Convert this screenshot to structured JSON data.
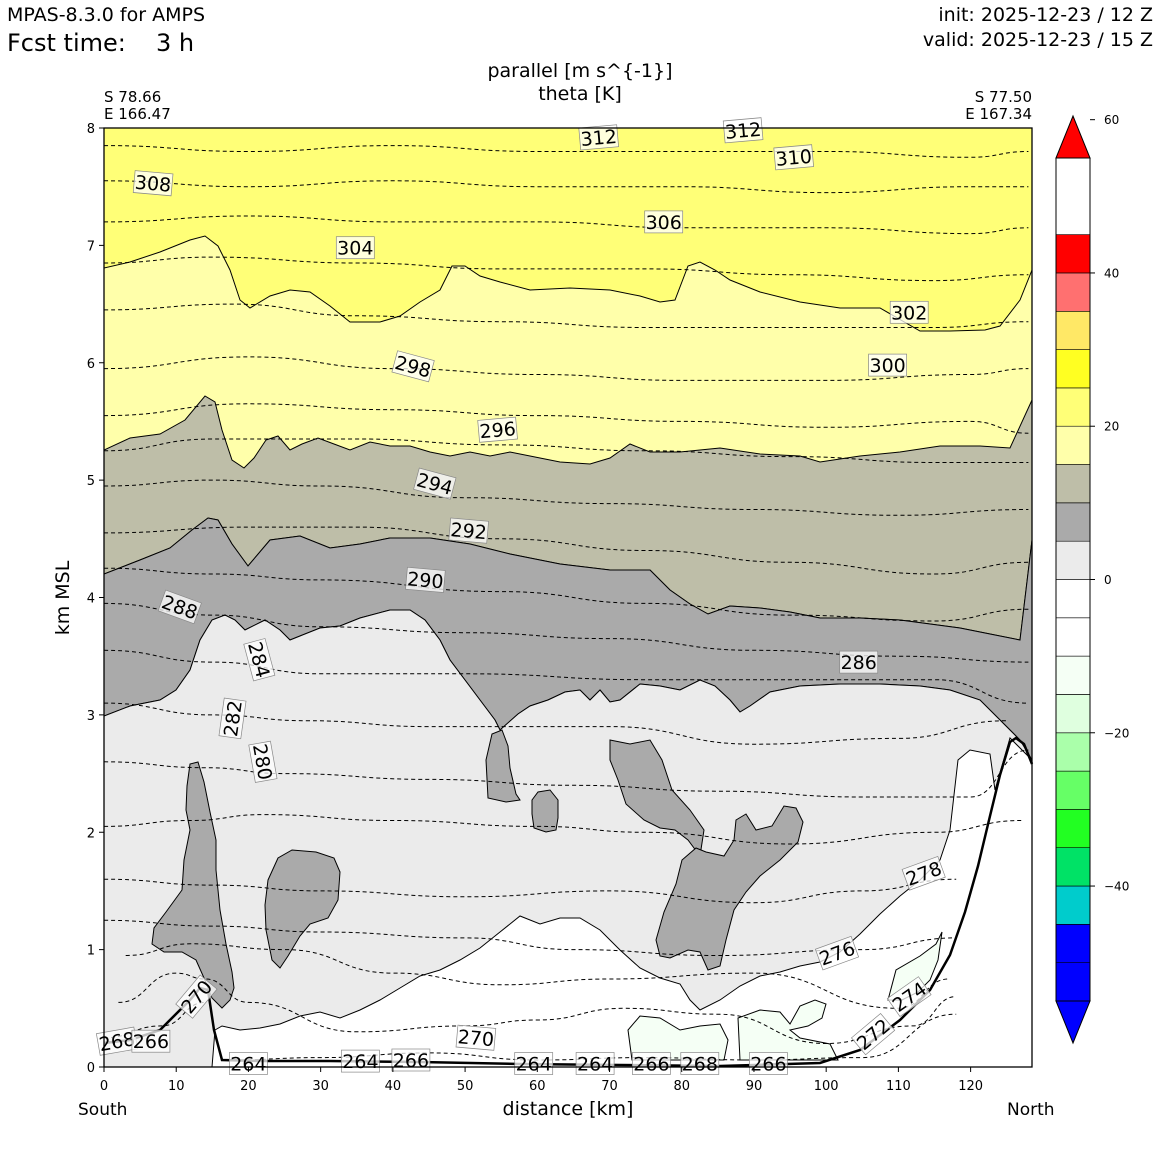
{
  "header": {
    "model": "MPAS-8.3.0 for AMPS",
    "fcst_label": "Fcst time:",
    "fcst_value": "3 h",
    "init": "init: 2025-12-23 / 12 Z",
    "valid": "valid: 2025-12-23 / 15 Z"
  },
  "chart_data": {
    "type": "cross-section",
    "title_line1": "parallel [m s^{-1}]",
    "title_line2": "theta [K]",
    "left_endpoint": {
      "lat": "S 78.66",
      "lon": "E 166.47"
    },
    "right_endpoint": {
      "lat": "S 77.50",
      "lon": "E 167.34"
    },
    "xlabel": "distance [km]",
    "ylabel": "km MSL",
    "x_left_label": "South",
    "x_right_label": "North",
    "xlim": [
      0,
      128.5
    ],
    "ylim": [
      0,
      8
    ],
    "xticks": [
      0,
      10,
      20,
      30,
      40,
      50,
      60,
      70,
      80,
      90,
      100,
      110,
      120
    ],
    "yticks": [
      0,
      1,
      2,
      3,
      4,
      5,
      6,
      7,
      8
    ],
    "colorbar": {
      "levels": [
        -55,
        -50,
        -45,
        -40,
        -35,
        -30,
        -25,
        -20,
        -15,
        -10,
        -5,
        0,
        5,
        10,
        15,
        20,
        25,
        30,
        35,
        40,
        45,
        50,
        55
      ],
      "colors": [
        "#0000ff",
        "#0000ff",
        "#00cccc",
        "#00e266",
        "#22ff22",
        "#66ff66",
        "#aaffaa",
        "#dfffdf",
        "#f5fff5",
        "#ffffff",
        "#ffffff",
        "#ebebeb",
        "#aaaaaa",
        "#bebea8",
        "#ffffaa",
        "#ffff77",
        "#ffff22",
        "#ffe866",
        "#ff7070",
        "#ff0000"
      ],
      "under_color": "#0000ff",
      "over_color": "#ff0000",
      "tick_values": [
        -40,
        -20,
        0,
        20,
        40,
        60
      ],
      "tick_labels": [
        "−40",
        "−20",
        "0",
        "20",
        "40",
        "60"
      ]
    },
    "wind_regions": [
      {
        "level": "20-25",
        "color": "#bebea8"
      },
      {
        "level": "15-20",
        "color": "#aaaaaa"
      },
      {
        "level": "10-15",
        "color": "#ebebeb"
      },
      {
        "level": "5-10",
        "color": "#ffffff"
      },
      {
        "level": "0-5",
        "color": "#f5fff5"
      },
      {
        "level": "25-30",
        "color": "#ffffaa"
      },
      {
        "level": "30-35",
        "color": "#ffff77"
      }
    ],
    "theta_contours": [
      {
        "value": 268,
        "label": "268",
        "pts": [
          [
            0,
            0.25
          ],
          [
            8,
            0.35
          ],
          [
            14,
            0.55
          ]
        ]
      },
      {
        "value": 270,
        "label": "270",
        "pts": [
          [
            17,
            0.06
          ],
          [
            30,
            0.08
          ],
          [
            45,
            0.12
          ],
          [
            60,
            0.06
          ],
          [
            75,
            0.08
          ],
          [
            90,
            0.06
          ],
          [
            105,
            0.08
          ],
          [
            118,
            0.45
          ]
        ]
      },
      {
        "value": 272,
        "label": "272",
        "pts": [
          [
            2,
            0.55
          ],
          [
            10,
            0.8
          ],
          [
            14,
            0.75
          ],
          [
            20,
            0.55
          ],
          [
            35,
            0.3
          ],
          [
            50,
            0.35
          ],
          [
            60,
            0.4
          ],
          [
            72,
            0.5
          ],
          [
            85,
            0.45
          ],
          [
            100,
            0.2
          ],
          [
            112,
            0.35
          ],
          [
            118,
            0.6
          ]
        ]
      },
      {
        "value": 274,
        "label": "274",
        "pts": [
          [
            3,
            0.95
          ],
          [
            12,
            1.05
          ],
          [
            25,
            1.0
          ],
          [
            40,
            0.8
          ],
          [
            55,
            0.7
          ],
          [
            70,
            0.75
          ],
          [
            90,
            0.8
          ],
          [
            110,
            0.5
          ],
          [
            117,
            0.75
          ]
        ]
      },
      {
        "value": 276,
        "label": "276",
        "pts": [
          [
            0,
            1.25
          ],
          [
            15,
            1.2
          ],
          [
            30,
            1.15
          ],
          [
            50,
            1.1
          ],
          [
            65,
            1.0
          ],
          [
            85,
            0.95
          ],
          [
            105,
            1.0
          ],
          [
            118,
            1.1
          ]
        ]
      },
      {
        "value": 278,
        "label": "278",
        "pts": [
          [
            0,
            1.6
          ],
          [
            15,
            1.55
          ],
          [
            30,
            1.5
          ],
          [
            50,
            1.45
          ],
          [
            70,
            1.5
          ],
          [
            90,
            1.4
          ],
          [
            105,
            1.5
          ],
          [
            118,
            1.6
          ]
        ]
      },
      {
        "value": 280,
        "label": "280",
        "pts": [
          [
            0,
            2.05
          ],
          [
            12,
            2.1
          ],
          [
            22,
            2.15
          ],
          [
            40,
            2.1
          ],
          [
            60,
            2.05
          ],
          [
            75,
            2.0
          ],
          [
            95,
            1.9
          ],
          [
            115,
            2.0
          ],
          [
            127,
            2.1
          ]
        ]
      },
      {
        "value": 282,
        "label": "282",
        "pts": [
          [
            0,
            2.6
          ],
          [
            14,
            2.55
          ],
          [
            25,
            2.5
          ],
          [
            45,
            2.45
          ],
          [
            65,
            2.4
          ],
          [
            85,
            2.35
          ],
          [
            105,
            2.3
          ],
          [
            120,
            2.3
          ],
          [
            128,
            2.7
          ]
        ]
      },
      {
        "value": 284,
        "label": "284",
        "pts": [
          [
            0,
            3.1
          ],
          [
            15,
            3.0
          ],
          [
            28,
            2.95
          ],
          [
            45,
            2.9
          ],
          [
            70,
            2.9
          ],
          [
            90,
            2.75
          ],
          [
            110,
            2.8
          ],
          [
            125,
            2.95
          ]
        ]
      },
      {
        "value": 286,
        "label": "286",
        "pts": [
          [
            0,
            3.55
          ],
          [
            15,
            3.45
          ],
          [
            30,
            3.35
          ],
          [
            50,
            3.35
          ],
          [
            75,
            3.3
          ],
          [
            100,
            3.3
          ],
          [
            115,
            3.3
          ],
          [
            128,
            3.1
          ]
        ]
      },
      {
        "value": 288,
        "label": "288",
        "pts": [
          [
            0,
            3.95
          ],
          [
            15,
            3.85
          ],
          [
            30,
            3.75
          ],
          [
            50,
            3.7
          ],
          [
            70,
            3.65
          ],
          [
            90,
            3.55
          ],
          [
            110,
            3.5
          ],
          [
            128,
            3.45
          ]
        ]
      },
      {
        "value": 290,
        "label": "290",
        "pts": [
          [
            0,
            4.25
          ],
          [
            15,
            4.2
          ],
          [
            30,
            4.15
          ],
          [
            55,
            4.05
          ],
          [
            75,
            3.95
          ],
          [
            95,
            3.85
          ],
          [
            115,
            3.8
          ],
          [
            128,
            3.9
          ]
        ]
      },
      {
        "value": 292,
        "label": "292",
        "pts": [
          [
            0,
            4.55
          ],
          [
            20,
            4.6
          ],
          [
            35,
            4.6
          ],
          [
            55,
            4.5
          ],
          [
            75,
            4.4
          ],
          [
            95,
            4.3
          ],
          [
            115,
            4.2
          ],
          [
            128,
            4.3
          ]
        ]
      },
      {
        "value": 294,
        "label": "294",
        "pts": [
          [
            0,
            4.95
          ],
          [
            15,
            5.0
          ],
          [
            30,
            4.95
          ],
          [
            50,
            4.85
          ],
          [
            70,
            4.8
          ],
          [
            90,
            4.75
          ],
          [
            110,
            4.7
          ],
          [
            128,
            4.75
          ]
        ]
      },
      {
        "value": 296,
        "label": "296",
        "pts": [
          [
            0,
            5.25
          ],
          [
            15,
            5.35
          ],
          [
            35,
            5.35
          ],
          [
            55,
            5.3
          ],
          [
            75,
            5.25
          ],
          [
            95,
            5.2
          ],
          [
            115,
            5.15
          ],
          [
            128,
            5.15
          ]
        ]
      },
      {
        "value": 298,
        "label": "298",
        "pts": [
          [
            0,
            5.55
          ],
          [
            20,
            5.65
          ],
          [
            40,
            5.6
          ],
          [
            60,
            5.55
          ],
          [
            80,
            5.5
          ],
          [
            100,
            5.45
          ],
          [
            120,
            5.5
          ],
          [
            128,
            5.4
          ]
        ]
      },
      {
        "value": 300,
        "label": "300",
        "pts": [
          [
            0,
            5.95
          ],
          [
            20,
            6.05
          ],
          [
            40,
            5.95
          ],
          [
            60,
            5.9
          ],
          [
            80,
            5.85
          ],
          [
            100,
            5.85
          ],
          [
            120,
            5.9
          ],
          [
            128,
            5.95
          ]
        ]
      },
      {
        "value": 302,
        "label": "302",
        "pts": [
          [
            0,
            6.45
          ],
          [
            18,
            6.5
          ],
          [
            35,
            6.4
          ],
          [
            55,
            6.35
          ],
          [
            75,
            6.3
          ],
          [
            95,
            6.3
          ],
          [
            115,
            6.3
          ],
          [
            128,
            6.35
          ]
        ]
      },
      {
        "value": 304,
        "label": "304",
        "pts": [
          [
            0,
            6.85
          ],
          [
            15,
            6.9
          ],
          [
            35,
            6.85
          ],
          [
            55,
            6.8
          ],
          [
            75,
            6.8
          ],
          [
            95,
            6.75
          ],
          [
            115,
            6.7
          ],
          [
            128,
            6.75
          ]
        ]
      },
      {
        "value": 306,
        "label": "306",
        "pts": [
          [
            0,
            7.2
          ],
          [
            20,
            7.25
          ],
          [
            40,
            7.2
          ],
          [
            60,
            7.2
          ],
          [
            80,
            7.15
          ],
          [
            100,
            7.15
          ],
          [
            120,
            7.1
          ],
          [
            128,
            7.15
          ]
        ]
      },
      {
        "value": 308,
        "label": "308",
        "pts": [
          [
            0,
            7.55
          ],
          [
            20,
            7.5
          ],
          [
            40,
            7.55
          ],
          [
            60,
            7.5
          ],
          [
            80,
            7.5
          ],
          [
            100,
            7.45
          ],
          [
            120,
            7.5
          ],
          [
            128,
            7.5
          ]
        ]
      },
      {
        "value": 310,
        "label": "310",
        "pts": [
          [
            0,
            7.85
          ],
          [
            20,
            7.8
          ],
          [
            40,
            7.85
          ],
          [
            60,
            7.8
          ],
          [
            80,
            7.8
          ],
          [
            100,
            7.8
          ],
          [
            120,
            7.75
          ],
          [
            128,
            7.8
          ]
        ]
      }
    ],
    "contour_labels": [
      {
        "text": "312",
        "x": 68.5,
        "y": 7.92,
        "rot": -5
      },
      {
        "text": "312",
        "x": 88.5,
        "y": 7.98,
        "rot": -5
      },
      {
        "text": "310",
        "x": 95.5,
        "y": 7.75,
        "rot": -5
      },
      {
        "text": "308",
        "x": 6.8,
        "y": 7.53,
        "rot": 5
      },
      {
        "text": "306",
        "x": 77.5,
        "y": 7.2,
        "rot": 0
      },
      {
        "text": "304",
        "x": 34.8,
        "y": 6.98,
        "rot": 0
      },
      {
        "text": "302",
        "x": 111.5,
        "y": 6.43,
        "rot": 0
      },
      {
        "text": "300",
        "x": 108.5,
        "y": 5.98,
        "rot": 0
      },
      {
        "text": "298",
        "x": 42.8,
        "y": 5.97,
        "rot": 15
      },
      {
        "text": "296",
        "x": 54.5,
        "y": 5.43,
        "rot": -5
      },
      {
        "text": "294",
        "x": 45.8,
        "y": 4.97,
        "rot": 15
      },
      {
        "text": "292",
        "x": 50.5,
        "y": 4.57,
        "rot": 5
      },
      {
        "text": "290",
        "x": 44.5,
        "y": 4.15,
        "rot": 5
      },
      {
        "text": "288",
        "x": 10.5,
        "y": 3.92,
        "rot": 20
      },
      {
        "text": "286",
        "x": 104.5,
        "y": 3.45,
        "rot": 0
      },
      {
        "text": "284",
        "x": 21.5,
        "y": 3.47,
        "rot": 75
      },
      {
        "text": "282",
        "x": 17.8,
        "y": 2.97,
        "rot": -82
      },
      {
        "text": "280",
        "x": 22.0,
        "y": 2.6,
        "rot": 80
      },
      {
        "text": "278",
        "x": 113.5,
        "y": 1.65,
        "rot": -20
      },
      {
        "text": "276",
        "x": 101.5,
        "y": 0.97,
        "rot": -20
      },
      {
        "text": "274",
        "x": 111.5,
        "y": 0.6,
        "rot": -35
      },
      {
        "text": "272",
        "x": 106.5,
        "y": 0.28,
        "rot": -40
      },
      {
        "text": "270",
        "x": 12.8,
        "y": 0.6,
        "rot": -50
      },
      {
        "text": "270",
        "x": 51.5,
        "y": 0.25,
        "rot": 5
      },
      {
        "text": "268",
        "x": 1.8,
        "y": 0.22,
        "rot": -10
      },
      {
        "text": "266",
        "x": 6.5,
        "y": 0.22,
        "rot": 0
      },
      {
        "text": "264",
        "x": 20.0,
        "y": 0.03,
        "rot": 0
      },
      {
        "text": "264",
        "x": 35.5,
        "y": 0.05,
        "rot": 0
      },
      {
        "text": "266",
        "x": 42.5,
        "y": 0.06,
        "rot": 0
      },
      {
        "text": "264",
        "x": 59.5,
        "y": 0.03,
        "rot": 0
      },
      {
        "text": "264",
        "x": 68.0,
        "y": 0.03,
        "rot": 0
      },
      {
        "text": "266",
        "x": 75.8,
        "y": 0.03,
        "rot": 0
      },
      {
        "text": "268",
        "x": 82.5,
        "y": 0.03,
        "rot": 0
      },
      {
        "text": "266",
        "x": 92.0,
        "y": 0.03,
        "rot": 0
      }
    ]
  }
}
